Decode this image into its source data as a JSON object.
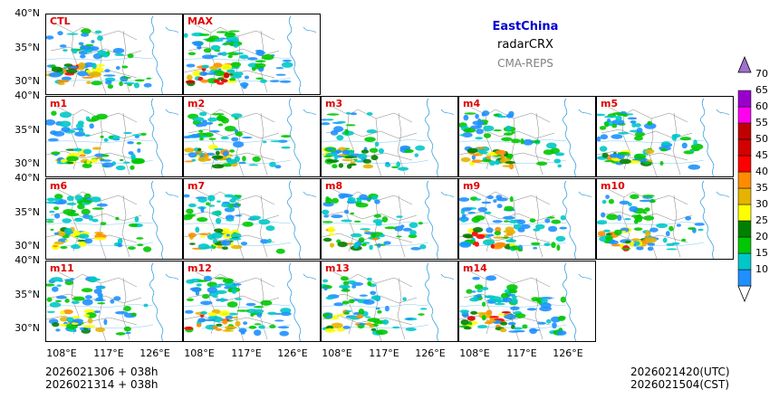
{
  "header": {
    "region": "EastChina",
    "product": "radarCRX",
    "system": "CMA-REPS"
  },
  "axes": {
    "lat_labels": [
      "40°N",
      "35°N",
      "30°N"
    ],
    "lon_labels": [
      "108°E",
      "117°E",
      "126°E"
    ]
  },
  "panels": [
    {
      "label": "CTL",
      "intensity": 0.75
    },
    {
      "label": "MAX",
      "intensity": 1.0
    },
    {
      "label": "m1",
      "intensity": 0.6
    },
    {
      "label": "m2",
      "intensity": 0.7
    },
    {
      "label": "m3",
      "intensity": 0.5
    },
    {
      "label": "m4",
      "intensity": 0.65
    },
    {
      "label": "m5",
      "intensity": 0.55
    },
    {
      "label": "m6",
      "intensity": 0.6
    },
    {
      "label": "m7",
      "intensity": 0.65
    },
    {
      "label": "m8",
      "intensity": 0.55
    },
    {
      "label": "m9",
      "intensity": 0.8
    },
    {
      "label": "m10",
      "intensity": 0.7
    },
    {
      "label": "m11",
      "intensity": 0.6
    },
    {
      "label": "m12",
      "intensity": 0.85
    },
    {
      "label": "m13",
      "intensity": 0.55
    },
    {
      "label": "m14",
      "intensity": 0.9
    }
  ],
  "footer": {
    "init_utc": "2026021306  +  038h",
    "init_cst": "2026021314  +  038h",
    "valid_utc": "2026021420(UTC)",
    "valid_cst": "2026021504(CST)"
  },
  "colorbar": {
    "levels": [
      "70",
      "65",
      "60",
      "55",
      "50",
      "45",
      "40",
      "35",
      "30",
      "25",
      "20",
      "15",
      "10"
    ],
    "colors": [
      "#1e90ff",
      "#00c8c8",
      "#00c800",
      "#008000",
      "#ffff00",
      "#e6b400",
      "#ff8c00",
      "#ff0000",
      "#d40000",
      "#c00000",
      "#ff00f0",
      "#9900cc",
      "#a070d0"
    ]
  }
}
